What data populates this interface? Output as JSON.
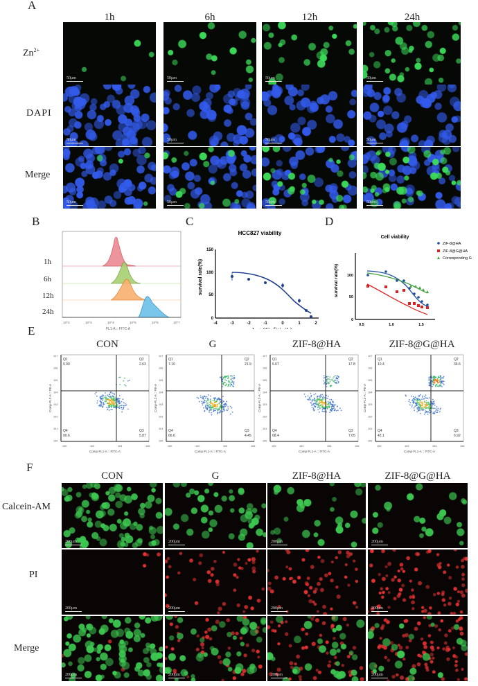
{
  "panelA": {
    "label": "A",
    "columns": [
      "1h",
      "6h",
      "12h",
      "24h"
    ],
    "rows": [
      "Zn2+",
      "DAPI",
      "Merge"
    ],
    "row_label_zn": "Zn",
    "row_label_zn_sup": "2+",
    "scale_bar": "50μm",
    "colors": {
      "zn": "#2fd050",
      "dapi": "#2a4fd8",
      "background": "#050805"
    }
  },
  "panelB": {
    "label": "B",
    "row_labels": [
      "1h",
      "6h",
      "12h",
      "24h"
    ],
    "x_ticks": [
      "10^2",
      "10^3",
      "10^4",
      "10^5",
      "10^6",
      "10^7"
    ],
    "xlabel": "FL1-A :: FITC-A",
    "colors": [
      "#e8707a",
      "#98c860",
      "#f5a860",
      "#5ab8e0"
    ]
  },
  "panelC": {
    "label": "C"
  },
  "panelD": {
    "label": "D"
  },
  "panelE": {
    "label": "E",
    "columns": [
      "CON",
      "G",
      "ZIF-8@HA",
      "ZIF-8@G@HA"
    ],
    "xlabel": "Comp-FL1-A :: FITC-A",
    "ylabel": "Comp-FL2-A :: PE-A",
    "quadrant_names": [
      "Q1",
      "Q2",
      "Q3",
      "Q4"
    ],
    "plots": [
      {
        "q1": "0.90",
        "q2": "2.63",
        "q3": "5.87",
        "q4": "90.6"
      },
      {
        "q1": "7.10",
        "q2": "21.9",
        "q3": "4.45",
        "q4": "66.6"
      },
      {
        "q1": "6.67",
        "q2": "17.8",
        "q3": "7.05",
        "q4": "68.4"
      },
      {
        "q1": "10.4",
        "q2": "39.6",
        "q3": "6.92",
        "q4": "43.1"
      }
    ],
    "y_ticks": [
      "10^7",
      "10^6",
      "10^5",
      "10^4",
      "10^3",
      "10^2",
      "10^1",
      "10^0"
    ],
    "x_ticks": [
      "10^0",
      "10^2",
      "10^4",
      "10^6"
    ]
  },
  "panelF": {
    "label": "F",
    "columns": [
      "CON",
      "G",
      "ZIF-8@HA",
      "ZIF-8@G@HA"
    ],
    "rows": [
      "Calcein-AM",
      "PI",
      "Merge"
    ],
    "scale_bar": "200μm",
    "colors": {
      "calcein": "#38c050",
      "pi": "#d83030",
      "background": "#0a0505"
    }
  },
  "chart_data": [
    {
      "type": "line",
      "title": "HCC827 viability",
      "xlabel": "log (Gefitinib)",
      "ylabel": "survival rate(%)",
      "xlim": [
        -4,
        2
      ],
      "ylim": [
        0,
        150
      ],
      "x_ticks": [
        -4,
        -3,
        -2,
        -1,
        0,
        1,
        2
      ],
      "y_ticks": [
        0,
        50,
        100,
        150
      ],
      "series": [
        {
          "name": "HCC827",
          "color": "#1f3f8f",
          "x": [
            -3,
            -2,
            -1,
            0,
            1,
            1.4,
            1.7
          ],
          "values": [
            91,
            84,
            76,
            71,
            37,
            16,
            3
          ],
          "fit": "sigmoid",
          "fit_x": [
            -3,
            -2,
            -1,
            0,
            1,
            1.7
          ],
          "fit_values": [
            99,
            95,
            85,
            64,
            33,
            15
          ]
        }
      ]
    },
    {
      "type": "line",
      "title": "Cell viability",
      "xlabel": "Conc (ug/ml)",
      "ylabel": "survival rate(%)",
      "xlim": [
        0.4,
        1.75
      ],
      "ylim": [
        0,
        125
      ],
      "x_ticks": [
        0.5,
        1.0,
        1.5
      ],
      "y_ticks": [
        0,
        50,
        100
      ],
      "legend_position": "right",
      "x": [
        0.6,
        0.9,
        1.08,
        1.2,
        1.3,
        1.38,
        1.45,
        1.51,
        1.6
      ],
      "series": [
        {
          "name": "ZIF-8@HA",
          "color": "#1f4fa0",
          "marker": "circle",
          "values": [
            93,
            101,
            80,
            81,
            63,
            50,
            43,
            35,
            27
          ]
        },
        {
          "name": "ZIF-8@G@HA",
          "color": "#e02020",
          "marker": "square",
          "values": [
            66,
            63,
            52,
            54,
            28,
            28,
            24,
            19,
            17
          ]
        },
        {
          "name": "Corresponding G",
          "color": "#40a040",
          "marker": "triangle",
          "values": [
            94,
            92,
            85,
            80,
            72,
            71,
            69,
            63,
            60
          ]
        }
      ]
    },
    {
      "type": "area",
      "title": "",
      "xlabel": "FL1-A :: FITC-A",
      "x_scale": "log",
      "xlim": [
        100,
        10000000
      ],
      "series": [
        {
          "name": "1h",
          "peak_x": 25000,
          "color": "#e8707a"
        },
        {
          "name": "6h",
          "peak_x": 60000,
          "color": "#98c860"
        },
        {
          "name": "12h",
          "peak_x": 80000,
          "color": "#f5a860"
        },
        {
          "name": "24h",
          "peak_x": 550000,
          "color": "#5ab8e0"
        }
      ]
    }
  ]
}
